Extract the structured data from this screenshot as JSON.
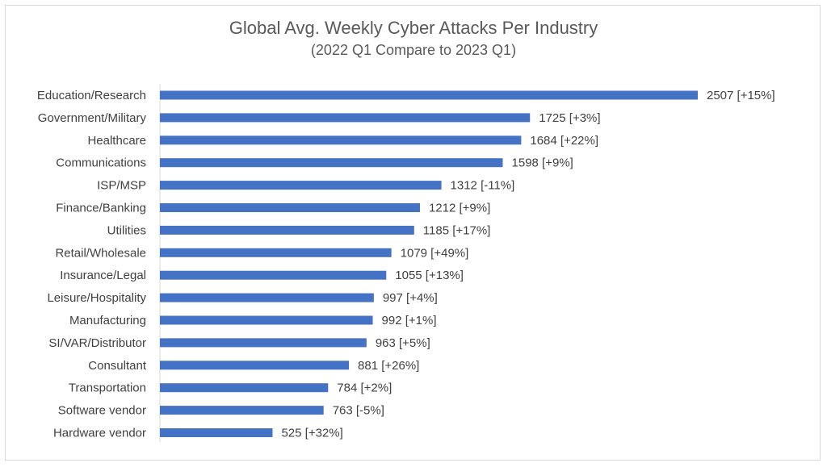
{
  "chart_data": {
    "type": "bar",
    "orientation": "horizontal",
    "title": "Global Avg. Weekly Cyber Attacks Per Industry",
    "subtitle": "(2022 Q1 Compare to 2023 Q1)",
    "categories": [
      "Education/Research",
      "Government/Military",
      "Healthcare",
      "Communications",
      "ISP/MSP",
      "Finance/Banking",
      "Utilities",
      "Retail/Wholesale",
      "Insurance/Legal",
      "Leisure/Hospitality",
      "Manufacturing",
      "SI/VAR/Distributor",
      "Consultant",
      "Transportation",
      "Software vendor",
      "Hardware vendor"
    ],
    "values": [
      2507,
      1725,
      1684,
      1598,
      1312,
      1212,
      1185,
      1079,
      1055,
      997,
      992,
      963,
      881,
      784,
      763,
      525
    ],
    "data_labels": [
      "2507 [+15%]",
      "1725 [+3%]",
      "1684 [+22%]",
      "1598 [+9%]",
      "1312 [-11%]",
      "1212 [+9%]",
      "1185 [+17%]",
      "1079 [+49%]",
      "1055 [+13%]",
      "997 [+4%]",
      "992 [+1%]",
      "963 [+5%]",
      "881 [+26%]",
      "784 [+2%]",
      "763 [-5%]",
      "525 [+32%]"
    ],
    "bar_color": "#4472c4",
    "grid": false,
    "legend": "none"
  }
}
